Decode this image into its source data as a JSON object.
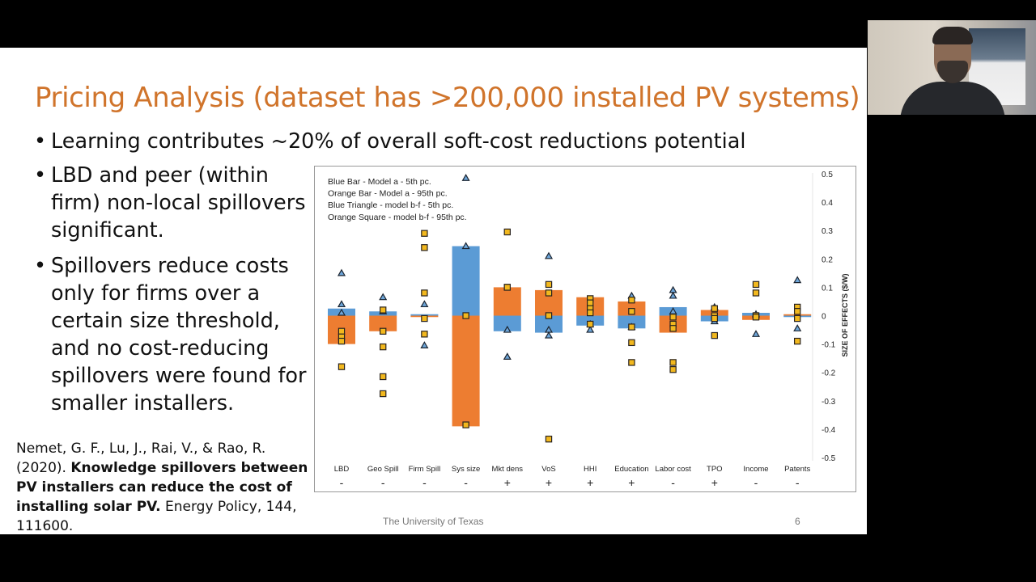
{
  "slide": {
    "title": "Pricing Analysis (dataset has >200,000 installed PV systems)",
    "bullets": [
      "Learning contributes ~20% of overall soft-cost reductions potential",
      "LBD and peer (within firm) non-local spillovers significant.",
      "Spillovers reduce costs only for firms over a certain size threshold, and no cost-reducing spillovers were found for smaller installers."
    ],
    "bullet_symbol": "•",
    "reference": {
      "authors": "Nemet, G. F., Lu, J., Rai, V., & Rao, R. (2020).",
      "title": "Knowledge spillovers between PV installers can reduce the cost of installing solar PV.",
      "journal": "Energy Policy, 144, 111600."
    },
    "footer": "The University of Texas",
    "page_number": "6"
  },
  "webcam": {
    "description_icon": "presenter-video-icon"
  },
  "chart_data": {
    "type": "bar",
    "ylabel": "SIZE OF EFFECTS ($/W)",
    "ylim": [
      -0.5,
      0.5
    ],
    "yticks": [
      0.5,
      0.4,
      0.3,
      0.2,
      0.1,
      0,
      -0.1,
      -0.2,
      -0.3,
      -0.4,
      -0.5
    ],
    "ytick_labels": [
      "0.5",
      "0.4",
      "0.3",
      "0.2",
      "0.1",
      "0",
      "-0.1",
      "-0.2",
      "-0.3",
      "-0.4",
      "-0.5"
    ],
    "legend": [
      "Blue Bar - Model a - 5th pc.",
      "Orange Bar - Model a - 95th pc.",
      "Blue Triangle - model b-f - 5th pc.",
      "Orange Square - model b-f - 95th pc."
    ],
    "legend_position": "top-left",
    "colors": {
      "blue": "#5b9bd5",
      "orange": "#ed7d31",
      "square_fill": "#f2b81e"
    },
    "categories": [
      "LBD",
      "Geo Spill",
      "Firm Spill",
      "Sys size",
      "Mkt dens",
      "VoS",
      "HHI",
      "Education",
      "Labor cost",
      "TPO",
      "Income",
      "Patents"
    ],
    "signs": [
      "-",
      "-",
      "-",
      "-",
      "+",
      "+",
      "+",
      "+",
      "-",
      "+",
      "-",
      "-"
    ],
    "blue_bar": [
      0.025,
      0.015,
      0.005,
      0.245,
      -0.055,
      -0.06,
      -0.035,
      -0.045,
      0.03,
      -0.02,
      0.01,
      -0.005
    ],
    "orange_bar": [
      -0.1,
      -0.055,
      -0.005,
      -0.39,
      0.1,
      0.09,
      0.065,
      0.05,
      -0.06,
      0.02,
      -0.015,
      0.005
    ],
    "blue_triangle": [
      [
        0.15,
        0.04,
        0.01
      ],
      [
        0.065,
        0.015
      ],
      [
        0.04,
        -0.105
      ],
      [
        0.485,
        0.245
      ],
      [
        -0.05,
        -0.145
      ],
      [
        0.21,
        -0.05,
        -0.07
      ],
      [
        -0.03,
        -0.05
      ],
      [
        0.07,
        -0.04
      ],
      [
        0.09,
        0.07,
        0.015
      ],
      [
        0.03,
        -0.02
      ],
      [
        0.005,
        -0.065
      ],
      [
        0.125,
        -0.045
      ]
    ],
    "orange_square": [
      [
        -0.055,
        -0.075,
        -0.09,
        -0.18
      ],
      [
        0.02,
        -0.055,
        -0.11,
        -0.215,
        -0.275
      ],
      [
        0.29,
        0.24,
        0.08,
        -0.01,
        -0.065
      ],
      [
        0.0,
        -0.385
      ],
      [
        0.295,
        0.1,
        0.1
      ],
      [
        0.11,
        0.08,
        0.0,
        -0.435
      ],
      [
        0.06,
        0.045,
        0.025,
        0.01,
        -0.03
      ],
      [
        0.055,
        0.015,
        -0.04,
        -0.095,
        -0.165
      ],
      [
        -0.005,
        -0.03,
        -0.045,
        -0.165,
        -0.19
      ],
      [
        0.025,
        0.0,
        -0.01,
        -0.07
      ],
      [
        0.11,
        0.08,
        0.0,
        -0.005
      ],
      [
        0.03,
        0.015,
        -0.01,
        -0.09
      ]
    ]
  }
}
